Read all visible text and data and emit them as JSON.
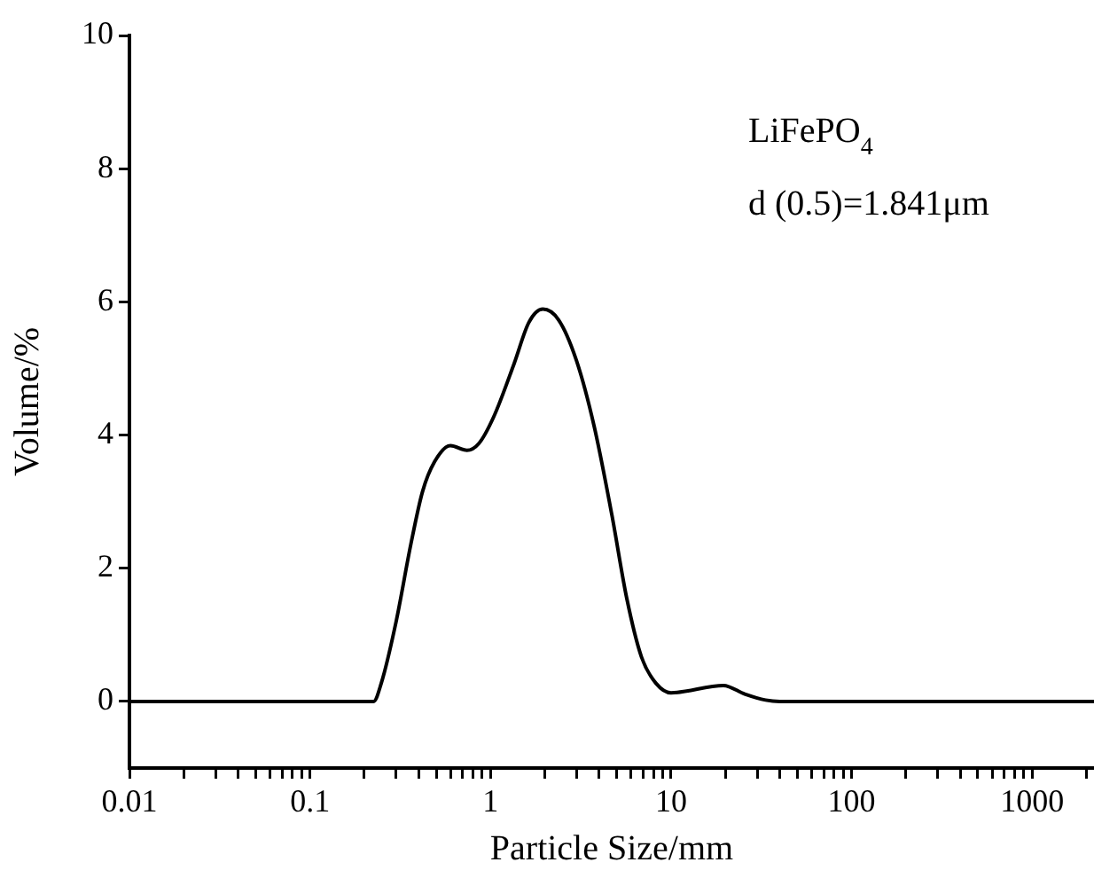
{
  "chart_data": {
    "type": "line",
    "xlabel": "Particle Size/mm",
    "ylabel": "Volume/%",
    "log": "x",
    "grid": false,
    "legend": false,
    "marker": "none",
    "line_style": "solid",
    "annotations": [
      "LiFePO$_{4}$",
      "d (0.5)=1.841μm"
    ],
    "xlim": [
      0.01,
      2200
    ],
    "ylim": [
      -1,
      10
    ],
    "xticks": [
      0.01,
      {
        "value": 0.02,
        "label": null
      },
      {
        "value": 0.03,
        "label": null
      },
      {
        "value": 0.04,
        "label": null
      },
      {
        "value": 0.05,
        "label": null
      },
      {
        "value": 0.06,
        "label": null
      },
      {
        "value": 0.07,
        "label": null
      },
      {
        "value": 0.08,
        "label": null
      },
      {
        "value": 0.09,
        "label": null
      },
      0.1,
      {
        "value": 0.2,
        "label": null
      },
      {
        "value": 0.3,
        "label": null
      },
      {
        "value": 0.4,
        "label": null
      },
      {
        "value": 0.5,
        "label": null
      },
      {
        "value": 0.6,
        "label": null
      },
      {
        "value": 0.7,
        "label": null
      },
      {
        "value": 0.8,
        "label": null
      },
      {
        "value": 0.9,
        "label": null
      },
      1,
      {
        "value": 2,
        "label": null
      },
      {
        "value": 3,
        "label": null
      },
      {
        "value": 4,
        "label": null
      },
      {
        "value": 5,
        "label": null
      },
      {
        "value": 6,
        "label": null
      },
      {
        "value": 7,
        "label": null
      },
      {
        "value": 8,
        "label": null
      },
      {
        "value": 9,
        "label": null
      },
      10,
      {
        "value": 20,
        "label": null
      },
      {
        "value": 30,
        "label": null
      },
      {
        "value": 40,
        "label": null
      },
      {
        "value": 50,
        "label": null
      },
      {
        "value": 60,
        "label": null
      },
      {
        "value": 70,
        "label": null
      },
      {
        "value": 80,
        "label": null
      },
      {
        "value": 90,
        "label": null
      },
      100,
      {
        "value": 200,
        "label": null
      },
      {
        "value": 300,
        "label": null
      },
      {
        "value": 400,
        "label": null
      },
      {
        "value": 500,
        "label": null
      },
      {
        "value": 600,
        "label": null
      },
      {
        "value": 700,
        "label": null
      },
      {
        "value": 800,
        "label": null
      },
      {
        "value": 900,
        "label": null
      },
      1000,
      {
        "value": 2000,
        "label": null
      }
    ],
    "yticks": [
      0,
      2,
      4,
      6,
      8,
      10
    ],
    "series": [
      {
        "color": "#000000",
        "x": [
          0.01,
          0.225,
          0.248,
          0.3,
          0.362,
          0.42,
          0.49,
          0.6,
          0.74,
          0.86,
          1.04,
          1.35,
          1.63,
          1.95,
          2.38,
          2.99,
          3.75,
          4.7,
          5.68,
          6.85,
          8.26,
          10,
          19.5,
          25.6,
          33.4,
          40,
          2200
        ],
        "values": [
          0,
          0,
          0.27,
          1.2,
          2.36,
          3.15,
          3.6,
          3.84,
          3.77,
          3.87,
          4.27,
          5.07,
          5.69,
          5.89,
          5.73,
          5.12,
          4.13,
          2.8,
          1.55,
          0.67,
          0.27,
          0.13,
          0.24,
          0.11,
          0.02,
          0,
          0
        ]
      }
    ]
  }
}
